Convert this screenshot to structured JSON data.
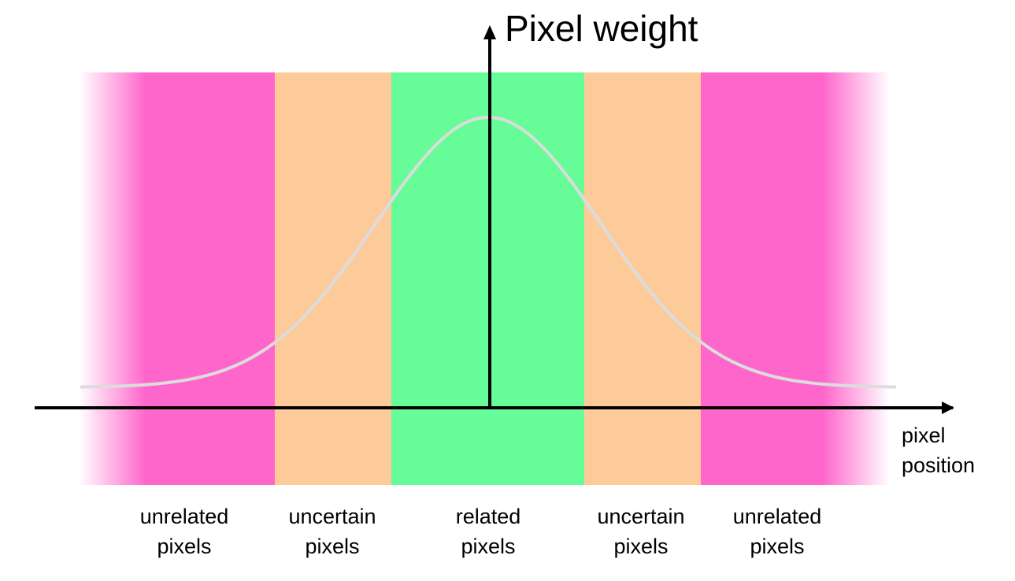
{
  "title": "",
  "axes": {
    "y_title": "Pixel weight",
    "x_title_line1": "pixel",
    "x_title_line2": "position"
  },
  "bands": [
    {
      "id": "unrelated-left",
      "line1": "unrelated",
      "line2": "pixels",
      "color": "#ff66cc"
    },
    {
      "id": "uncertain-left",
      "line1": "uncertain",
      "line2": "pixels",
      "color": "#fdca99"
    },
    {
      "id": "related",
      "line1": "related",
      "line2": "pixels",
      "color": "#66fc98"
    },
    {
      "id": "uncertain-right",
      "line1": "uncertain",
      "line2": "pixels",
      "color": "#fdca99"
    },
    {
      "id": "unrelated-right",
      "line1": "unrelated",
      "line2": "pixels",
      "color": "#ff66cc"
    }
  ],
  "curve": {
    "shape": "gaussian",
    "color": "#dcdcdc"
  },
  "colors": {
    "axis": "#000000"
  }
}
